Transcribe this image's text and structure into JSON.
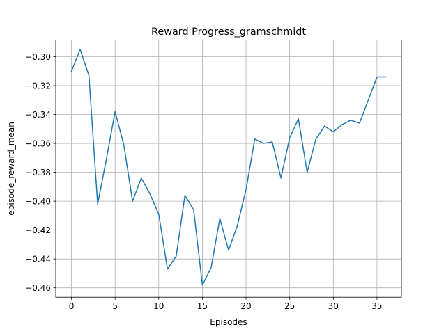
{
  "chart_data": {
    "type": "line",
    "title": "Reward Progress_gramschmidt",
    "xlabel": "Episodes",
    "ylabel": "episode_reward_mean",
    "xlim": [
      -1.8,
      37.8
    ],
    "ylim": [
      -0.4665,
      -0.2885
    ],
    "xticks": [
      0,
      5,
      10,
      15,
      20,
      25,
      30,
      35
    ],
    "yticks": [
      -0.46,
      -0.44,
      -0.42,
      -0.4,
      -0.38,
      -0.36,
      -0.34,
      -0.32,
      -0.3
    ],
    "ytick_labels": [
      "−0.46",
      "−0.44",
      "−0.42",
      "−0.40",
      "−0.38",
      "−0.36",
      "−0.34",
      "−0.32",
      "−0.30"
    ],
    "grid": true,
    "line_color": "#1f77b4",
    "series": [
      {
        "x": [
          0,
          1,
          2,
          3,
          4,
          5,
          6,
          7,
          8,
          9,
          10,
          11,
          12,
          13,
          14,
          15,
          16,
          17,
          18,
          19,
          20,
          21,
          22,
          23,
          24,
          25,
          26,
          27,
          28,
          29,
          30,
          31,
          32,
          33,
          34,
          35,
          36
        ],
        "values": [
          -0.31,
          -0.295,
          -0.313,
          -0.402,
          -0.371,
          -0.338,
          -0.361,
          -0.4,
          -0.384,
          -0.395,
          -0.409,
          -0.447,
          -0.438,
          -0.396,
          -0.406,
          -0.458,
          -0.446,
          -0.412,
          -0.434,
          -0.417,
          -0.392,
          -0.357,
          -0.36,
          -0.359,
          -0.384,
          -0.356,
          -0.343,
          -0.38,
          -0.357,
          -0.348,
          -0.352,
          -0.347,
          -0.344,
          -0.346,
          -0.33,
          -0.314,
          -0.314
        ]
      }
    ]
  }
}
